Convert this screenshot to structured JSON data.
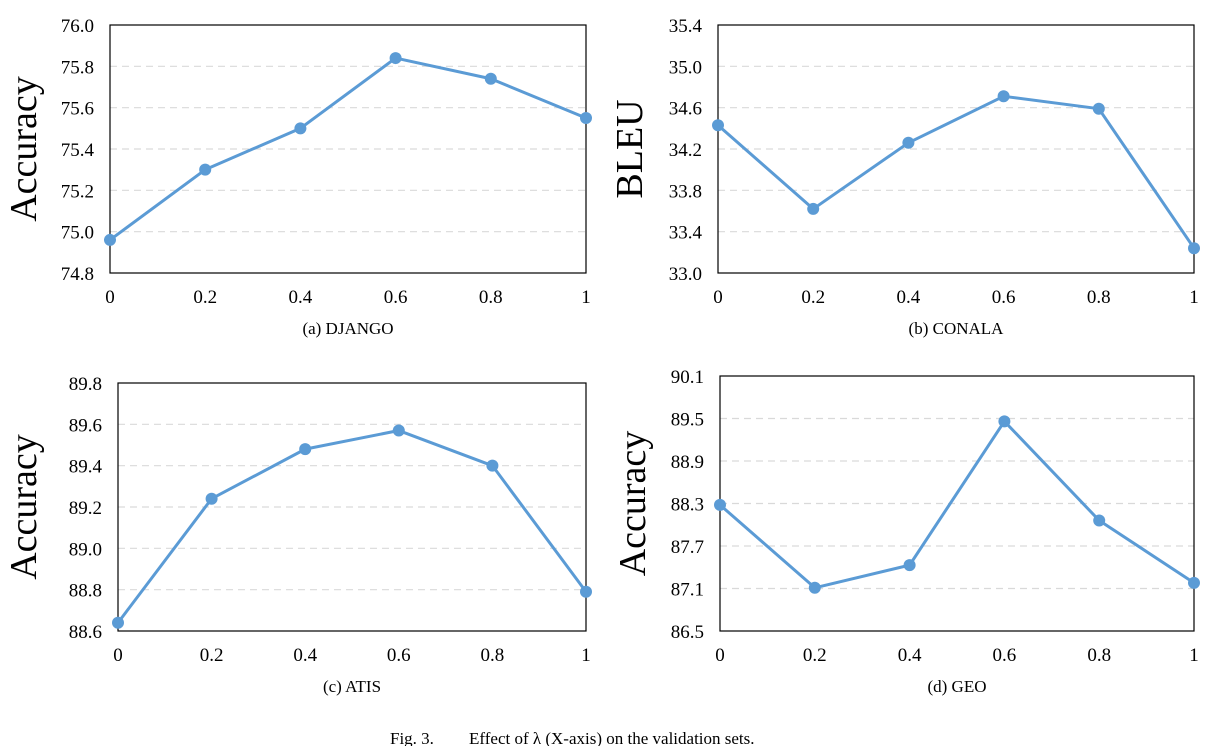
{
  "figure": {
    "caption_prefix": "Fig. 3.",
    "caption_text": "Effect of λ (X-axis) on the validation sets."
  },
  "colors": {
    "line": "#5b9bd5",
    "grid": "#d9d9d9",
    "frame": "#000000"
  },
  "chart_data": [
    {
      "type": "line",
      "subtitle": "(a)  DJANGO",
      "xlabel": "",
      "ylabel": "Accuracy",
      "x": [
        0,
        0.2,
        0.4,
        0.6,
        0.8,
        1
      ],
      "x_tick_labels": [
        "0",
        "0.2",
        "0.4",
        "0.6",
        "0.8",
        "1"
      ],
      "y_ticks": [
        74.8,
        75.0,
        75.2,
        75.4,
        75.6,
        75.8,
        76.0
      ],
      "y_tick_labels": [
        "74.8",
        "75.0",
        "75.2",
        "75.4",
        "75.6",
        "75.8",
        "76.0"
      ],
      "ylim": [
        74.8,
        76.0
      ],
      "grid": "horizontal dashed",
      "series": [
        {
          "values": [
            74.96,
            75.3,
            75.5,
            75.84,
            75.74,
            75.55
          ]
        }
      ]
    },
    {
      "type": "line",
      "subtitle": "(b)  CONALA",
      "xlabel": "",
      "ylabel": "BLEU",
      "x": [
        0,
        0.2,
        0.4,
        0.6,
        0.8,
        1
      ],
      "x_tick_labels": [
        "0",
        "0.2",
        "0.4",
        "0.6",
        "0.8",
        "1"
      ],
      "y_ticks": [
        33.0,
        33.4,
        33.8,
        34.2,
        34.6,
        35.0,
        35.4
      ],
      "y_tick_labels": [
        "33.0",
        "33.4",
        "33.8",
        "34.2",
        "34.6",
        "35.0",
        "35.4"
      ],
      "ylim": [
        33.0,
        35.4
      ],
      "grid": "horizontal dashed",
      "series": [
        {
          "values": [
            34.43,
            33.62,
            34.26,
            34.71,
            34.59,
            33.24
          ]
        }
      ]
    },
    {
      "type": "line",
      "subtitle": "(c)  ATIS",
      "xlabel": "",
      "ylabel": "Accuracy",
      "x": [
        0,
        0.2,
        0.4,
        0.6,
        0.8,
        1
      ],
      "x_tick_labels": [
        "0",
        "0.2",
        "0.4",
        "0.6",
        "0.8",
        "1"
      ],
      "y_ticks": [
        88.6,
        88.8,
        89.0,
        89.2,
        89.4,
        89.6,
        89.8
      ],
      "y_tick_labels": [
        "88.6",
        "88.8",
        "89.0",
        "89.2",
        "89.4",
        "89.6",
        "89.8"
      ],
      "ylim": [
        88.6,
        89.8
      ],
      "grid": "horizontal dashed",
      "series": [
        {
          "values": [
            88.64,
            89.24,
            89.48,
            89.57,
            89.4,
            88.79
          ]
        }
      ]
    },
    {
      "type": "line",
      "subtitle": "(d)  GEO",
      "xlabel": "",
      "ylabel": "Accuracy",
      "x": [
        0,
        0.2,
        0.4,
        0.6,
        0.8,
        1
      ],
      "x_tick_labels": [
        "0",
        "0.2",
        "0.4",
        "0.6",
        "0.8",
        "1"
      ],
      "y_ticks": [
        86.5,
        87.1,
        87.7,
        88.3,
        88.9,
        89.5,
        90.1
      ],
      "y_tick_labels": [
        "86.5",
        "87.1",
        "87.7",
        "88.3",
        "88.9",
        "89.5",
        "90.1"
      ],
      "ylim": [
        86.5,
        90.1
      ],
      "grid": "horizontal dashed",
      "series": [
        {
          "values": [
            88.28,
            87.11,
            87.43,
            89.46,
            88.06,
            87.18
          ]
        }
      ]
    }
  ]
}
